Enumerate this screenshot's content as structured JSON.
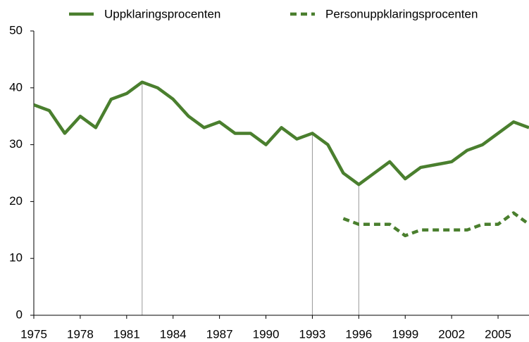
{
  "chart_data": {
    "type": "line",
    "x": [
      1975,
      1976,
      1977,
      1978,
      1979,
      1980,
      1981,
      1982,
      1983,
      1984,
      1985,
      1986,
      1987,
      1988,
      1989,
      1990,
      1991,
      1992,
      1993,
      1994,
      1995,
      1996,
      1997,
      1998,
      1999,
      2000,
      2001,
      2002,
      2003,
      2004,
      2005,
      2006,
      2007
    ],
    "series": [
      {
        "name": "Uppklaringsprocenten",
        "color": "#4a7f2e",
        "dash": false,
        "values": [
          37,
          36,
          32,
          35,
          33,
          38,
          39,
          41,
          40,
          38,
          35,
          33,
          34,
          32,
          32,
          30,
          33,
          31,
          32,
          30,
          25,
          23,
          25,
          27,
          24,
          26,
          26.5,
          27,
          29,
          30,
          32,
          34,
          33
        ]
      },
      {
        "name": "Personuppklaringsprocenten",
        "color": "#4a7f2e",
        "dash": true,
        "values": [
          null,
          null,
          null,
          null,
          null,
          null,
          null,
          null,
          null,
          null,
          null,
          null,
          null,
          null,
          null,
          null,
          null,
          null,
          null,
          null,
          17,
          16,
          16,
          16,
          14,
          15,
          15,
          15,
          15,
          16,
          16,
          18,
          16
        ]
      }
    ],
    "vlines": [
      1982,
      1993,
      1996
    ],
    "xlim": [
      1975,
      2007
    ],
    "xticks": [
      1975,
      1978,
      1981,
      1984,
      1987,
      1990,
      1993,
      1996,
      1999,
      2002,
      2005
    ],
    "ylim": [
      0,
      50
    ],
    "yticks": [
      0,
      10,
      20,
      30,
      40,
      50
    ]
  }
}
